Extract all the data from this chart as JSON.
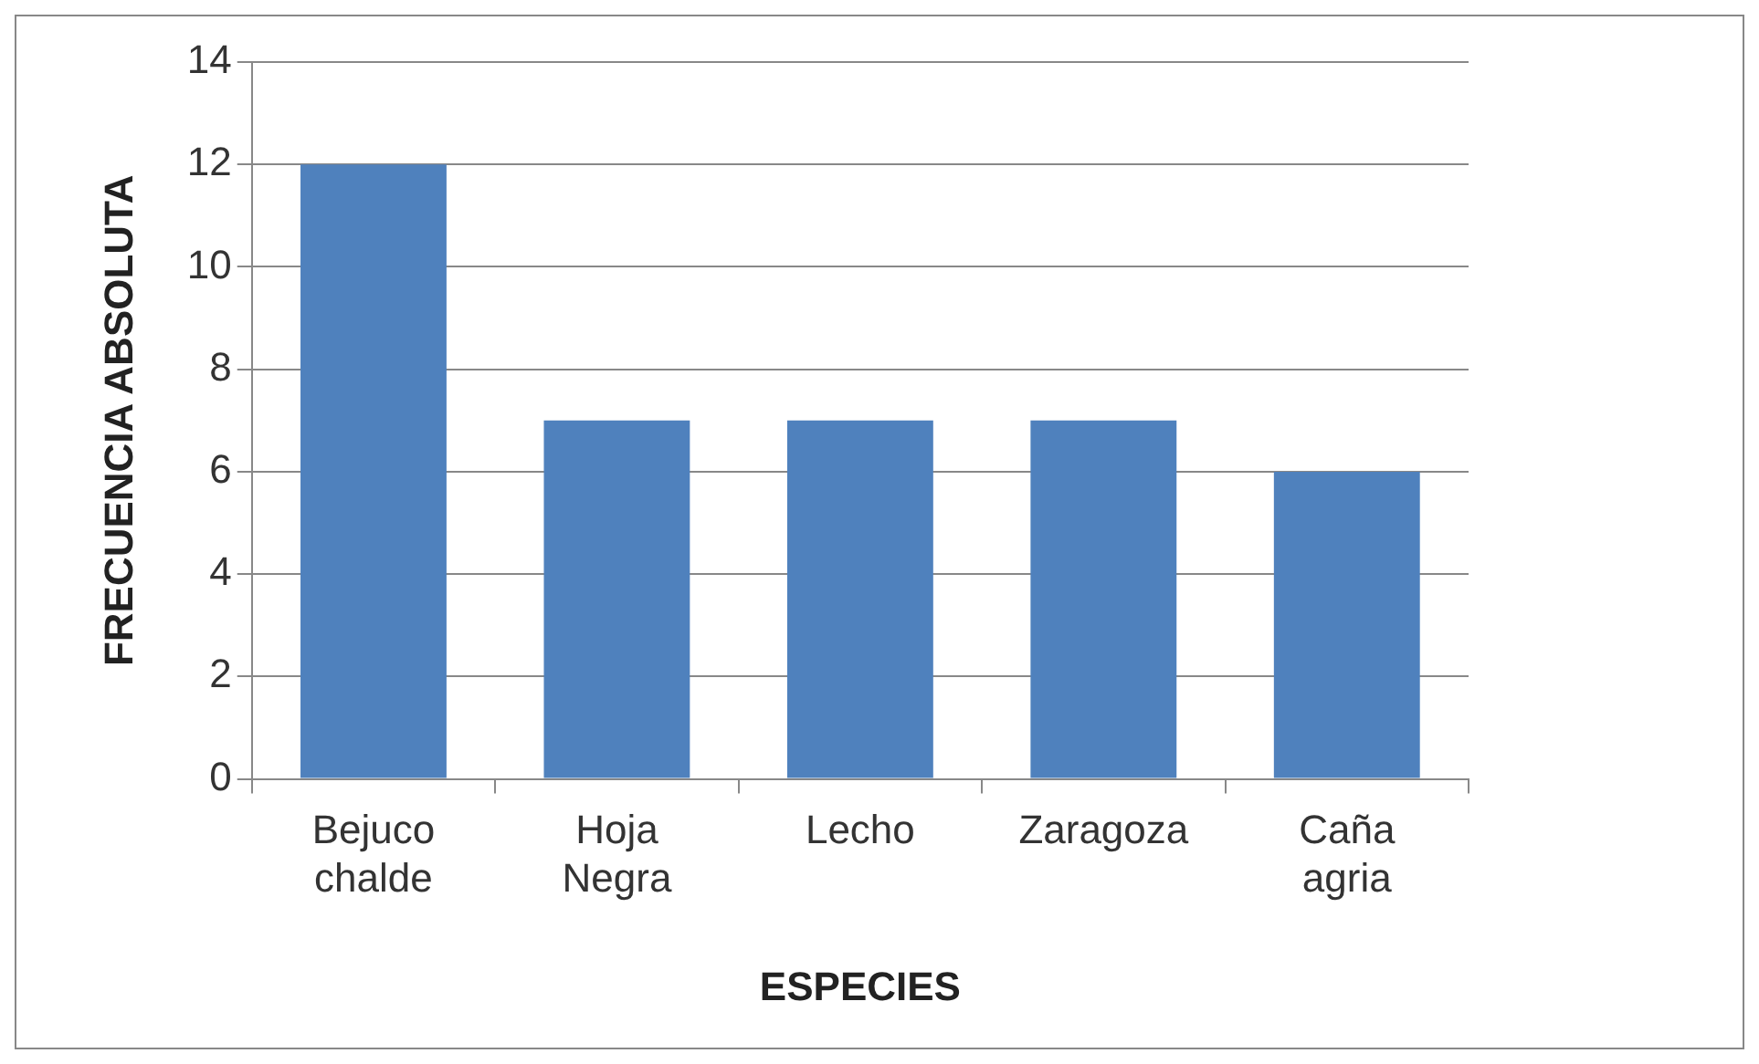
{
  "chart_data": {
    "type": "bar",
    "xlabel": "ESPECIES",
    "ylabel": "FRECUENCIA ABSOLUTA",
    "categories": [
      "Bejuco chalde",
      "Hoja Negra",
      "Lecho",
      "Zaragoza",
      "Caña agria"
    ],
    "values": [
      12,
      7,
      7,
      7,
      6
    ],
    "color": "#4f81bd",
    "ylim": [
      0,
      14
    ],
    "yticks": [
      0,
      2,
      4,
      6,
      8,
      10,
      12,
      14
    ],
    "grid": "y",
    "legend": false
  }
}
